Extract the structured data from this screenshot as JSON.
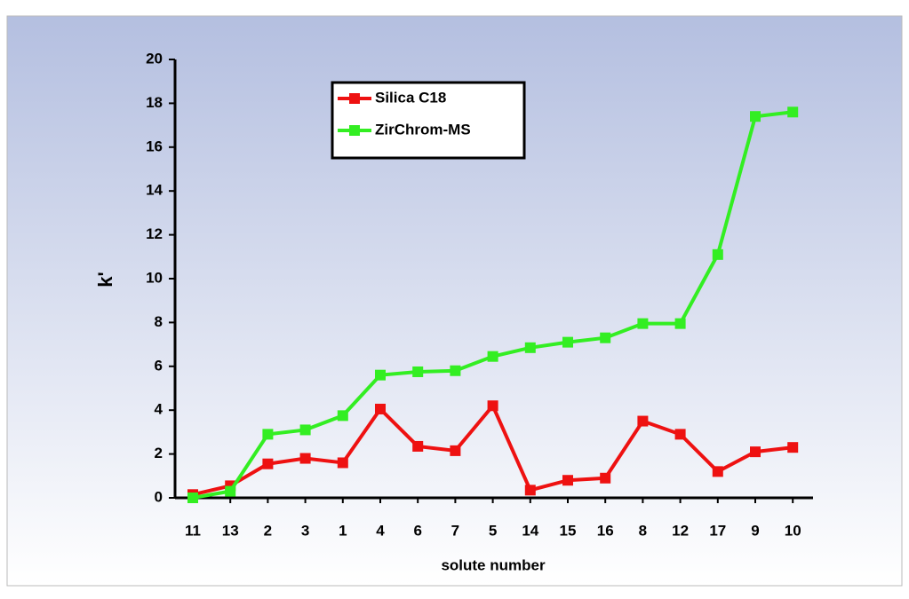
{
  "chart_data": {
    "type": "line",
    "x_label": "solute number",
    "y_label": "k'",
    "categories": [
      "11",
      "13",
      "2",
      "3",
      "1",
      "4",
      "6",
      "7",
      "5",
      "14",
      "15",
      "16",
      "8",
      "12",
      "17",
      "9",
      "10"
    ],
    "series": [
      {
        "name": "Silica C18",
        "color": "#ee1111",
        "values": [
          0.15,
          0.55,
          1.55,
          1.8,
          1.6,
          4.05,
          2.35,
          2.15,
          4.2,
          0.35,
          0.8,
          0.9,
          3.5,
          2.9,
          1.2,
          2.1,
          2.3
        ]
      },
      {
        "name": "ZirChrom-MS",
        "color": "#33ee22",
        "values": [
          0,
          0.3,
          2.9,
          3.1,
          3.75,
          5.6,
          5.75,
          5.8,
          6.45,
          6.85,
          7.1,
          7.3,
          7.95,
          7.95,
          11.1,
          17.4,
          17.6
        ]
      }
    ],
    "ylim": [
      0,
      20
    ],
    "yticks": [
      0,
      2,
      4,
      6,
      8,
      10,
      12,
      14,
      16,
      18,
      20
    ]
  }
}
